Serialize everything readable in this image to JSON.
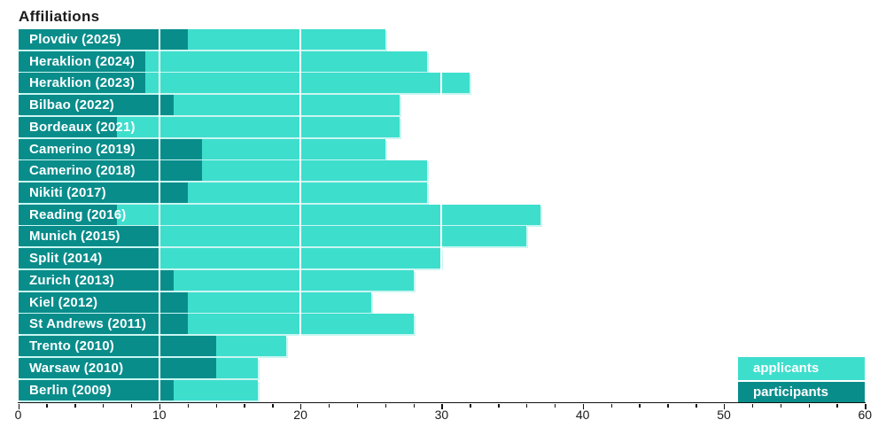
{
  "title": "Affiliations",
  "legend": {
    "applicants": "applicants",
    "participants": "participants"
  },
  "colors": {
    "applicants": "#3EDECD",
    "participants": "#098D8B",
    "title_text": "#1b1b1b",
    "axis": "#111111",
    "bar_label_text": "#ffffff"
  },
  "chart_data": {
    "type": "bar",
    "orientation": "horizontal",
    "title": "Affiliations",
    "categories": [
      "Plovdiv (2025)",
      "Heraklion (2024)",
      "Heraklion (2023)",
      "Bilbao (2022)",
      "Bordeaux (2021)",
      "Camerino (2019)",
      "Camerino (2018)",
      "Nikiti (2017)",
      "Reading (2016)",
      "Munich (2015)",
      "Split (2014)",
      "Zurich (2013)",
      "Kiel (2012)",
      "St Andrews (2011)",
      "Trento (2010)",
      "Warsaw (2010)",
      "Berlin (2009)"
    ],
    "series": [
      {
        "name": "applicants",
        "color": "#3EDECD",
        "values": [
          26,
          29,
          32,
          27,
          27,
          26,
          29,
          29,
          37,
          36,
          30,
          28,
          25,
          28,
          19,
          17,
          17
        ]
      },
      {
        "name": "participants",
        "color": "#098D8B",
        "values": [
          12,
          9,
          9,
          11,
          7,
          13,
          13,
          12,
          7,
          10,
          10,
          11,
          12,
          12,
          14,
          14,
          11
        ]
      }
    ],
    "xlim": [
      0,
      60
    ],
    "x_major_ticks": [
      0,
      10,
      20,
      30,
      40,
      50,
      60
    ],
    "x_minor_tick_step": 2,
    "bar_style": "overlapped-from-zero",
    "gridlines": "white vertical lines over bars at major ticks",
    "legend_position": "bottom-right",
    "category_labels_position": "inside-bar-left"
  }
}
